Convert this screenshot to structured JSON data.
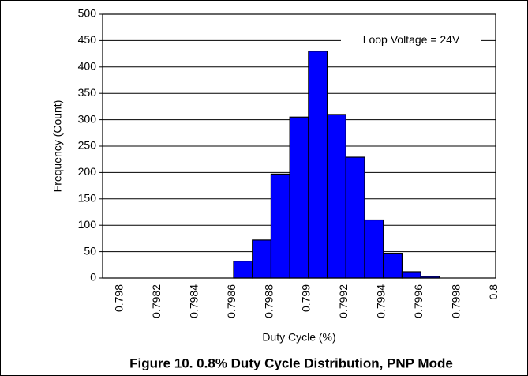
{
  "chart_data": {
    "type": "bar",
    "title": "Figure 10. 0.8% Duty Cycle Distribution, PNP Mode",
    "xlabel": "Duty Cycle (%)",
    "ylabel": "Frequency (Count)",
    "annotation": "Loop Voltage = 24V",
    "categories": [
      "0.798",
      null,
      "0.7982",
      null,
      "0.7984",
      null,
      "0.7986",
      null,
      "0.7988",
      null,
      "0.799",
      null,
      "0.7992",
      null,
      "0.7994",
      null,
      "0.7996",
      null,
      "0.7998",
      null,
      "0.8"
    ],
    "values": [
      0,
      0,
      0,
      0,
      0,
      0,
      0,
      32,
      72,
      197,
      305,
      430,
      310,
      229,
      110,
      47,
      12,
      3,
      0,
      0,
      0
    ],
    "color": "#0000ff",
    "ylim": [
      0,
      500
    ],
    "yticks": [
      0,
      50,
      100,
      150,
      200,
      250,
      300,
      350,
      400,
      450,
      500
    ],
    "grid": true
  }
}
